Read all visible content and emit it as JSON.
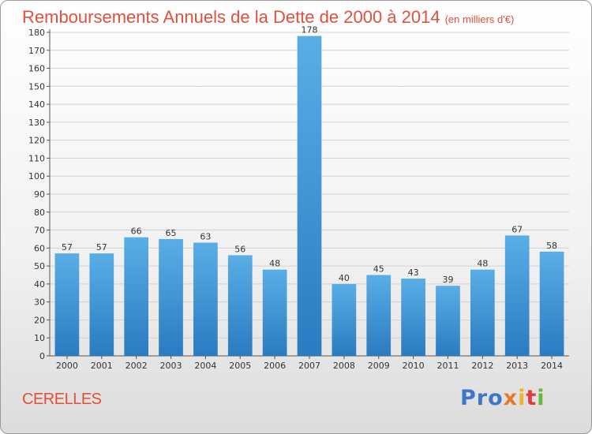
{
  "header": {
    "title": "Remboursements Annuels de la Dette de 2000 à 2014",
    "subtitle": "(en milliers d'€)"
  },
  "footer": {
    "commune": "CERELLES",
    "logo": [
      "Pro",
      "x",
      "i",
      "t",
      "i"
    ]
  },
  "colors": {
    "accent": "#e0503c",
    "bar_top": "#5aaee6",
    "bar_bottom": "#2a7bc0"
  },
  "chart_data": {
    "type": "bar",
    "categories": [
      "2000",
      "2001",
      "2002",
      "2003",
      "2004",
      "2005",
      "2006",
      "2007",
      "2008",
      "2009",
      "2010",
      "2011",
      "2012",
      "2013",
      "2014"
    ],
    "values": [
      57,
      57,
      66,
      65,
      63,
      56,
      48,
      178,
      40,
      45,
      43,
      39,
      48,
      67,
      58
    ],
    "ylim": [
      0,
      180
    ],
    "yticks": [
      0,
      10,
      20,
      30,
      40,
      50,
      60,
      70,
      80,
      90,
      100,
      110,
      120,
      130,
      140,
      150,
      160,
      170,
      180
    ],
    "grid": true,
    "data_labels": true
  }
}
